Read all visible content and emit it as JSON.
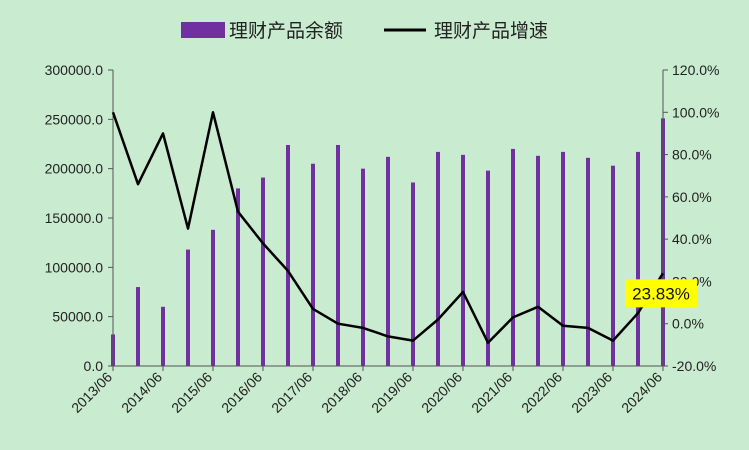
{
  "chart_data": {
    "type": "bar+line",
    "title": "",
    "legend": {
      "placement": "top-center",
      "items": [
        {
          "name": "理财产品余额",
          "kind": "bar",
          "color": "#7030a0"
        },
        {
          "name": "理财产品增速",
          "kind": "line",
          "color": "#000000"
        }
      ]
    },
    "x": [
      "2013/06",
      "2013/12",
      "2014/06",
      "2014/12",
      "2015/06",
      "2015/12",
      "2016/06",
      "2016/12",
      "2017/06",
      "2017/12",
      "2018/06",
      "2018/12",
      "2019/06",
      "2019/12",
      "2020/06",
      "2020/12",
      "2021/06",
      "2021/12",
      "2022/06",
      "2022/12",
      "2023/06",
      "2023/12",
      "2024/06"
    ],
    "x_tick_labels": [
      "2013/06",
      "2014/06",
      "2015/06",
      "2016/06",
      "2017/06",
      "2018/06",
      "2019/06",
      "2020/06",
      "2021/06",
      "2022/06",
      "2023/06",
      "2024/06"
    ],
    "series": [
      {
        "name": "理财产品余额",
        "axis": "left",
        "type": "bar",
        "color": "#7030a0",
        "values": [
          32000,
          80000,
          60000,
          118000,
          138000,
          180000,
          191000,
          224000,
          205000,
          224000,
          200000,
          212000,
          186000,
          217000,
          214000,
          198000,
          220000,
          213000,
          217000,
          211000,
          203000,
          217000,
          251000
        ]
      },
      {
        "name": "理财产品增速",
        "axis": "right",
        "type": "line",
        "color": "#000000",
        "values": [
          100.0,
          66.0,
          90.0,
          45.0,
          100.0,
          53.0,
          38.0,
          25.0,
          7.0,
          0.0,
          -2.0,
          -6.0,
          -8.0,
          2.0,
          15.0,
          -9.0,
          3.0,
          8.0,
          -1.0,
          -2.0,
          -8.0,
          5.0,
          23.83
        ]
      }
    ],
    "y_left": {
      "ylim": [
        0,
        300000
      ],
      "ticks": [
        0,
        50000,
        100000,
        150000,
        200000,
        250000,
        300000
      ],
      "tick_labels": [
        "0.0",
        "50000.0",
        "100000.0",
        "150000.0",
        "200000.0",
        "250000.0",
        "300000.0"
      ]
    },
    "y_right": {
      "ylim": [
        -20,
        120
      ],
      "ticks": [
        -20,
        0,
        20,
        40,
        60,
        80,
        100,
        120
      ],
      "tick_labels": [
        "-20.0%",
        "0.0%",
        "20.0%",
        "40.0%",
        "60.0%",
        "80.0%",
        "100.0%",
        "120.0%"
      ]
    },
    "annotation": {
      "text": "23.83%",
      "index": 22,
      "series": "理财产品增速",
      "background": "#ffff00"
    },
    "grid": false
  }
}
